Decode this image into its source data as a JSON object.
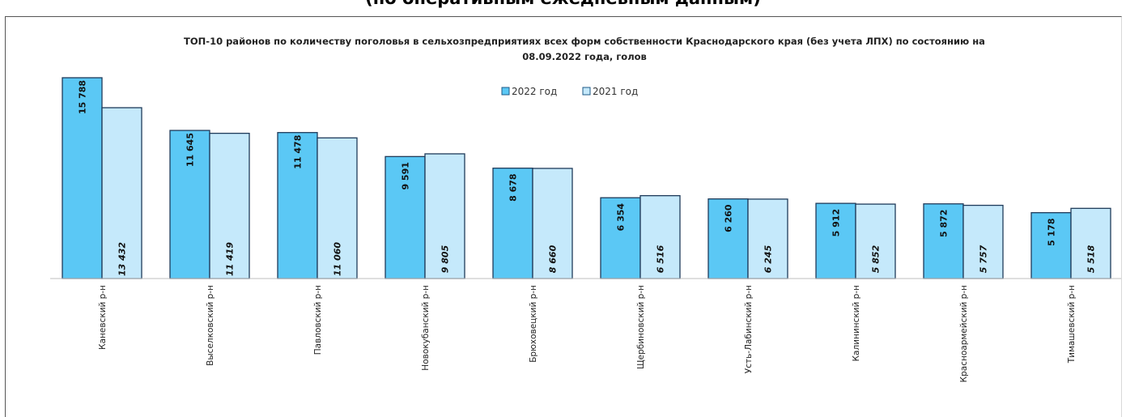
{
  "page": {
    "header": "(по оперативным ежедневным данным)"
  },
  "chart_data": {
    "type": "bar",
    "title": "ТОП-10 районов по количеству поголовья в сельхозпредприятиях всех форм собственности Краснодарского края (без учета ЛПХ) по состоянию на",
    "title_line2": "08.09.2022 года, голов",
    "categories": [
      "Каневский р-н",
      "Выселковский р-н",
      "Павловский р-н",
      "Новокубанский р-н",
      "Брюховецкий р-н",
      "Щербиновский р-н",
      "Усть-Лабинский р-н",
      "Калининский р-н",
      "Красноармейский р-н",
      "Тимашевский р-н"
    ],
    "series": [
      {
        "name": "2022 год",
        "color": "#5bc8f5",
        "values": [
          15788,
          11645,
          11478,
          9591,
          8678,
          6354,
          6260,
          5912,
          5872,
          5178
        ],
        "labels": [
          "15 788",
          "11 645",
          "11 478",
          "9 591",
          "8 678",
          "6 354",
          "6 260",
          "5 912",
          "5 872",
          "5 178"
        ]
      },
      {
        "name": "2021 год",
        "color": "#c5e9fb",
        "values": [
          13432,
          11419,
          11060,
          9805,
          8660,
          6516,
          6245,
          5852,
          5757,
          5518
        ],
        "labels": [
          "13 432",
          "11 419",
          "11 060",
          "9 805",
          "8 660",
          "6 516",
          "6 245",
          "5 852",
          "5 757",
          "5 518"
        ]
      }
    ],
    "ylim": [
      0,
      15788
    ],
    "grid": false,
    "legend_position": "top-center",
    "xlabel": "",
    "ylabel": ""
  }
}
